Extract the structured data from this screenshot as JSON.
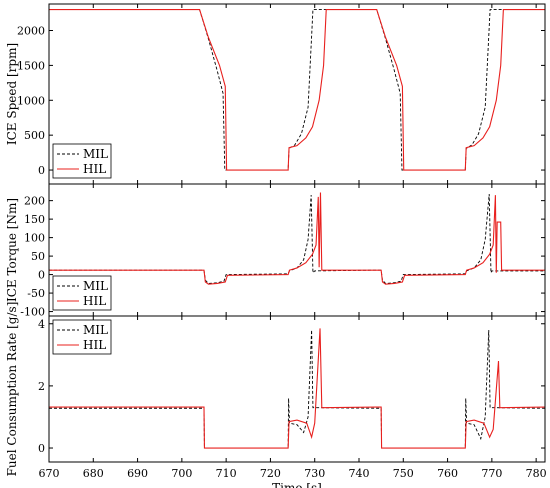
{
  "chart_data": {
    "type": "line",
    "xlabel": "Time [s]",
    "xlim": [
      670,
      782
    ],
    "x_ticks": [
      670,
      680,
      690,
      700,
      710,
      720,
      730,
      740,
      750,
      760,
      770,
      780
    ],
    "panels": [
      {
        "ylabel": "ICE Speed [rpm]",
        "ylim": [
          -200,
          2380
        ],
        "y_ticks": [
          0,
          500,
          1000,
          1500,
          2000
        ],
        "legend": "bottom-left",
        "series": [
          {
            "name": "MIL",
            "color": "#000000",
            "dash": true,
            "points": [
              [
                670,
                2300
              ],
              [
                704,
                2300
              ],
              [
                706,
                1880
              ],
              [
                708,
                1420
              ],
              [
                709.3,
                1100
              ],
              [
                709.7,
                0
              ],
              [
                724,
                0
              ],
              [
                724.2,
                310
              ],
              [
                725.5,
                360
              ],
              [
                727,
                520
              ],
              [
                728.5,
                900
              ],
              [
                729.6,
                2300
              ],
              [
                744,
                2300
              ],
              [
                746,
                1880
              ],
              [
                748,
                1420
              ],
              [
                749.3,
                1100
              ],
              [
                749.7,
                0
              ],
              [
                764,
                0
              ],
              [
                764.2,
                310
              ],
              [
                765.5,
                360
              ],
              [
                767,
                520
              ],
              [
                768.5,
                900
              ],
              [
                769.6,
                2300
              ],
              [
                782,
                2300
              ]
            ]
          },
          {
            "name": "HIL",
            "color": "#e8201e",
            "dash": false,
            "points": [
              [
                670,
                2300
              ],
              [
                704,
                2300
              ],
              [
                706,
                1900
              ],
              [
                708.5,
                1500
              ],
              [
                709.8,
                1200
              ],
              [
                710.1,
                0
              ],
              [
                724,
                0
              ],
              [
                724.2,
                320
              ],
              [
                726,
                350
              ],
              [
                728,
                460
              ],
              [
                729.5,
                620
              ],
              [
                731,
                1000
              ],
              [
                732,
                1500
              ],
              [
                732.6,
                2300
              ],
              [
                744,
                2300
              ],
              [
                746,
                1900
              ],
              [
                748.5,
                1500
              ],
              [
                749.8,
                1200
              ],
              [
                750.1,
                0
              ],
              [
                764,
                0
              ],
              [
                764.2,
                320
              ],
              [
                766,
                350
              ],
              [
                768,
                460
              ],
              [
                769.5,
                620
              ],
              [
                771,
                1000
              ],
              [
                772,
                1500
              ],
              [
                772.6,
                2300
              ],
              [
                782,
                2300
              ]
            ]
          }
        ]
      },
      {
        "ylabel": "ICE Torque [Nm]",
        "ylim": [
          -112,
          245
        ],
        "y_ticks": [
          -100,
          -50,
          0,
          50,
          100,
          150,
          200
        ],
        "legend": "bottom-left",
        "series": [
          {
            "name": "MIL",
            "color": "#000000",
            "dash": true,
            "points": [
              [
                670,
                12
              ],
              [
                705,
                12
              ],
              [
                705.3,
                -15
              ],
              [
                706,
                -24
              ],
              [
                708,
                -22
              ],
              [
                709.5,
                -18
              ],
              [
                710,
                0
              ],
              [
                724,
                2
              ],
              [
                724.3,
                10
              ],
              [
                726,
                18
              ],
              [
                727.5,
                40
              ],
              [
                728.5,
                95
              ],
              [
                729.2,
                215
              ],
              [
                729.6,
                5
              ],
              [
                730,
                10
              ],
              [
                744,
                12
              ],
              [
                745,
                12
              ],
              [
                745.3,
                -15
              ],
              [
                746,
                -24
              ],
              [
                748,
                -22
              ],
              [
                749.5,
                -18
              ],
              [
                750,
                0
              ],
              [
                764,
                2
              ],
              [
                764.3,
                10
              ],
              [
                766,
                18
              ],
              [
                767.5,
                40
              ],
              [
                768.5,
                95
              ],
              [
                769.4,
                218
              ],
              [
                769.8,
                5
              ],
              [
                770,
                10
              ],
              [
                782,
                10
              ]
            ]
          },
          {
            "name": "HIL",
            "color": "#e8201e",
            "dash": false,
            "points": [
              [
                670,
                12
              ],
              [
                705,
                12
              ],
              [
                705.3,
                -20
              ],
              [
                706,
                -26
              ],
              [
                708,
                -24
              ],
              [
                709.8,
                -20
              ],
              [
                710.3,
                -2
              ],
              [
                724,
                0
              ],
              [
                724.3,
                12
              ],
              [
                726,
                18
              ],
              [
                728,
                32
              ],
              [
                729.5,
                55
              ],
              [
                730.3,
                80
              ],
              [
                730.8,
                210
              ],
              [
                731,
                20
              ],
              [
                731.3,
                222
              ],
              [
                731.6,
                12
              ],
              [
                744,
                12
              ],
              [
                745,
                12
              ],
              [
                745.3,
                -20
              ],
              [
                746,
                -26
              ],
              [
                748,
                -24
              ],
              [
                749.8,
                -20
              ],
              [
                750.3,
                -2
              ],
              [
                764,
                0
              ],
              [
                764.3,
                12
              ],
              [
                766,
                18
              ],
              [
                768,
                32
              ],
              [
                769.5,
                55
              ],
              [
                770.3,
                80
              ],
              [
                770.8,
                215
              ],
              [
                771,
                5
              ],
              [
                771.2,
                142
              ],
              [
                772,
                142
              ],
              [
                772.2,
                12
              ],
              [
                782,
                12
              ]
            ]
          }
        ]
      },
      {
        "ylabel": "Fuel Consumption Rate [g/s]",
        "ylim": [
          -0.45,
          4.25
        ],
        "y_ticks": [
          0,
          2,
          4
        ],
        "legend": "top-left",
        "series": [
          {
            "name": "MIL",
            "color": "#000000",
            "dash": true,
            "points": [
              [
                670,
                1.28
              ],
              [
                705,
                1.28
              ],
              [
                705.1,
                0
              ],
              [
                724,
                0
              ],
              [
                724.1,
                1.6
              ],
              [
                724.3,
                0.8
              ],
              [
                726,
                0.75
              ],
              [
                727.5,
                0.5
              ],
              [
                728.5,
                1.0
              ],
              [
                729.3,
                3.8
              ],
              [
                729.6,
                1.3
              ],
              [
                744,
                1.28
              ],
              [
                745,
                1.28
              ],
              [
                745.1,
                0
              ],
              [
                764,
                0
              ],
              [
                764.1,
                1.6
              ],
              [
                764.3,
                0.8
              ],
              [
                766,
                0.75
              ],
              [
                767.5,
                0.3
              ],
              [
                768.5,
                1.0
              ],
              [
                769.3,
                3.8
              ],
              [
                769.6,
                1.3
              ],
              [
                782,
                1.28
              ]
            ]
          },
          {
            "name": "HIL",
            "color": "#e8201e",
            "dash": false,
            "points": [
              [
                670,
                1.32
              ],
              [
                705,
                1.32
              ],
              [
                705.1,
                0
              ],
              [
                724,
                0
              ],
              [
                724.2,
                0.85
              ],
              [
                726,
                0.9
              ],
              [
                728.2,
                0.8
              ],
              [
                729.3,
                0.35
              ],
              [
                730,
                0.8
              ],
              [
                731.2,
                3.85
              ],
              [
                731.6,
                1.3
              ],
              [
                744,
                1.32
              ],
              [
                745,
                1.32
              ],
              [
                745.1,
                0
              ],
              [
                764,
                0
              ],
              [
                764.2,
                0.85
              ],
              [
                766,
                0.9
              ],
              [
                768.2,
                0.8
              ],
              [
                769.5,
                0.35
              ],
              [
                770.3,
                0.6
              ],
              [
                771.5,
                2.8
              ],
              [
                771.8,
                1.3
              ],
              [
                782,
                1.32
              ]
            ]
          }
        ]
      }
    ]
  }
}
